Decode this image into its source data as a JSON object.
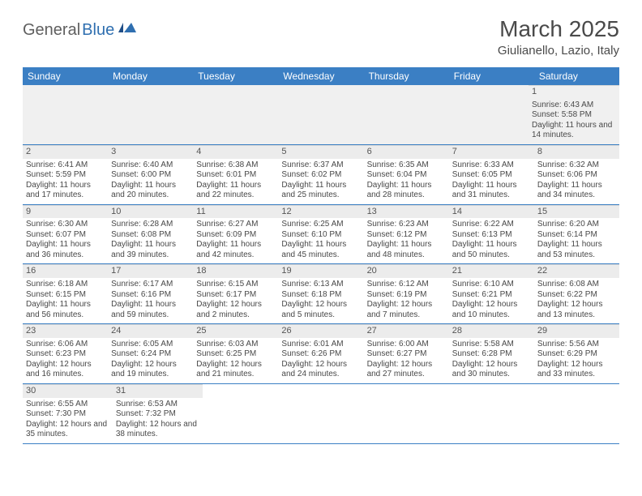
{
  "logo": {
    "part1": "General",
    "part2": "Blue"
  },
  "title": "March 2025",
  "location": "Giulianello, Lazio, Italy",
  "day_names": [
    "Sunday",
    "Monday",
    "Tuesday",
    "Wednesday",
    "Thursday",
    "Friday",
    "Saturday"
  ],
  "header_bg": "#3b7fc4",
  "header_fg": "#ffffff",
  "row_border": "#3b7fc4",
  "daynum_bg": "#ececec",
  "first_week_bg": "#f0f0f0",
  "weeks": [
    {
      "leading_blanks": 6,
      "days": [
        {
          "n": "1",
          "sunrise": "Sunrise: 6:43 AM",
          "sunset": "Sunset: 5:58 PM",
          "daylight": "Daylight: 11 hours and 14 minutes."
        }
      ]
    },
    {
      "leading_blanks": 0,
      "days": [
        {
          "n": "2",
          "sunrise": "Sunrise: 6:41 AM",
          "sunset": "Sunset: 5:59 PM",
          "daylight": "Daylight: 11 hours and 17 minutes."
        },
        {
          "n": "3",
          "sunrise": "Sunrise: 6:40 AM",
          "sunset": "Sunset: 6:00 PM",
          "daylight": "Daylight: 11 hours and 20 minutes."
        },
        {
          "n": "4",
          "sunrise": "Sunrise: 6:38 AM",
          "sunset": "Sunset: 6:01 PM",
          "daylight": "Daylight: 11 hours and 22 minutes."
        },
        {
          "n": "5",
          "sunrise": "Sunrise: 6:37 AM",
          "sunset": "Sunset: 6:02 PM",
          "daylight": "Daylight: 11 hours and 25 minutes."
        },
        {
          "n": "6",
          "sunrise": "Sunrise: 6:35 AM",
          "sunset": "Sunset: 6:04 PM",
          "daylight": "Daylight: 11 hours and 28 minutes."
        },
        {
          "n": "7",
          "sunrise": "Sunrise: 6:33 AM",
          "sunset": "Sunset: 6:05 PM",
          "daylight": "Daylight: 11 hours and 31 minutes."
        },
        {
          "n": "8",
          "sunrise": "Sunrise: 6:32 AM",
          "sunset": "Sunset: 6:06 PM",
          "daylight": "Daylight: 11 hours and 34 minutes."
        }
      ]
    },
    {
      "leading_blanks": 0,
      "days": [
        {
          "n": "9",
          "sunrise": "Sunrise: 6:30 AM",
          "sunset": "Sunset: 6:07 PM",
          "daylight": "Daylight: 11 hours and 36 minutes."
        },
        {
          "n": "10",
          "sunrise": "Sunrise: 6:28 AM",
          "sunset": "Sunset: 6:08 PM",
          "daylight": "Daylight: 11 hours and 39 minutes."
        },
        {
          "n": "11",
          "sunrise": "Sunrise: 6:27 AM",
          "sunset": "Sunset: 6:09 PM",
          "daylight": "Daylight: 11 hours and 42 minutes."
        },
        {
          "n": "12",
          "sunrise": "Sunrise: 6:25 AM",
          "sunset": "Sunset: 6:10 PM",
          "daylight": "Daylight: 11 hours and 45 minutes."
        },
        {
          "n": "13",
          "sunrise": "Sunrise: 6:23 AM",
          "sunset": "Sunset: 6:12 PM",
          "daylight": "Daylight: 11 hours and 48 minutes."
        },
        {
          "n": "14",
          "sunrise": "Sunrise: 6:22 AM",
          "sunset": "Sunset: 6:13 PM",
          "daylight": "Daylight: 11 hours and 50 minutes."
        },
        {
          "n": "15",
          "sunrise": "Sunrise: 6:20 AM",
          "sunset": "Sunset: 6:14 PM",
          "daylight": "Daylight: 11 hours and 53 minutes."
        }
      ]
    },
    {
      "leading_blanks": 0,
      "days": [
        {
          "n": "16",
          "sunrise": "Sunrise: 6:18 AM",
          "sunset": "Sunset: 6:15 PM",
          "daylight": "Daylight: 11 hours and 56 minutes."
        },
        {
          "n": "17",
          "sunrise": "Sunrise: 6:17 AM",
          "sunset": "Sunset: 6:16 PM",
          "daylight": "Daylight: 11 hours and 59 minutes."
        },
        {
          "n": "18",
          "sunrise": "Sunrise: 6:15 AM",
          "sunset": "Sunset: 6:17 PM",
          "daylight": "Daylight: 12 hours and 2 minutes."
        },
        {
          "n": "19",
          "sunrise": "Sunrise: 6:13 AM",
          "sunset": "Sunset: 6:18 PM",
          "daylight": "Daylight: 12 hours and 5 minutes."
        },
        {
          "n": "20",
          "sunrise": "Sunrise: 6:12 AM",
          "sunset": "Sunset: 6:19 PM",
          "daylight": "Daylight: 12 hours and 7 minutes."
        },
        {
          "n": "21",
          "sunrise": "Sunrise: 6:10 AM",
          "sunset": "Sunset: 6:21 PM",
          "daylight": "Daylight: 12 hours and 10 minutes."
        },
        {
          "n": "22",
          "sunrise": "Sunrise: 6:08 AM",
          "sunset": "Sunset: 6:22 PM",
          "daylight": "Daylight: 12 hours and 13 minutes."
        }
      ]
    },
    {
      "leading_blanks": 0,
      "days": [
        {
          "n": "23",
          "sunrise": "Sunrise: 6:06 AM",
          "sunset": "Sunset: 6:23 PM",
          "daylight": "Daylight: 12 hours and 16 minutes."
        },
        {
          "n": "24",
          "sunrise": "Sunrise: 6:05 AM",
          "sunset": "Sunset: 6:24 PM",
          "daylight": "Daylight: 12 hours and 19 minutes."
        },
        {
          "n": "25",
          "sunrise": "Sunrise: 6:03 AM",
          "sunset": "Sunset: 6:25 PM",
          "daylight": "Daylight: 12 hours and 21 minutes."
        },
        {
          "n": "26",
          "sunrise": "Sunrise: 6:01 AM",
          "sunset": "Sunset: 6:26 PM",
          "daylight": "Daylight: 12 hours and 24 minutes."
        },
        {
          "n": "27",
          "sunrise": "Sunrise: 6:00 AM",
          "sunset": "Sunset: 6:27 PM",
          "daylight": "Daylight: 12 hours and 27 minutes."
        },
        {
          "n": "28",
          "sunrise": "Sunrise: 5:58 AM",
          "sunset": "Sunset: 6:28 PM",
          "daylight": "Daylight: 12 hours and 30 minutes."
        },
        {
          "n": "29",
          "sunrise": "Sunrise: 5:56 AM",
          "sunset": "Sunset: 6:29 PM",
          "daylight": "Daylight: 12 hours and 33 minutes."
        }
      ]
    },
    {
      "leading_blanks": 0,
      "days": [
        {
          "n": "30",
          "sunrise": "Sunrise: 6:55 AM",
          "sunset": "Sunset: 7:30 PM",
          "daylight": "Daylight: 12 hours and 35 minutes."
        },
        {
          "n": "31",
          "sunrise": "Sunrise: 6:53 AM",
          "sunset": "Sunset: 7:32 PM",
          "daylight": "Daylight: 12 hours and 38 minutes."
        }
      ],
      "trailing_blanks": 5
    }
  ]
}
